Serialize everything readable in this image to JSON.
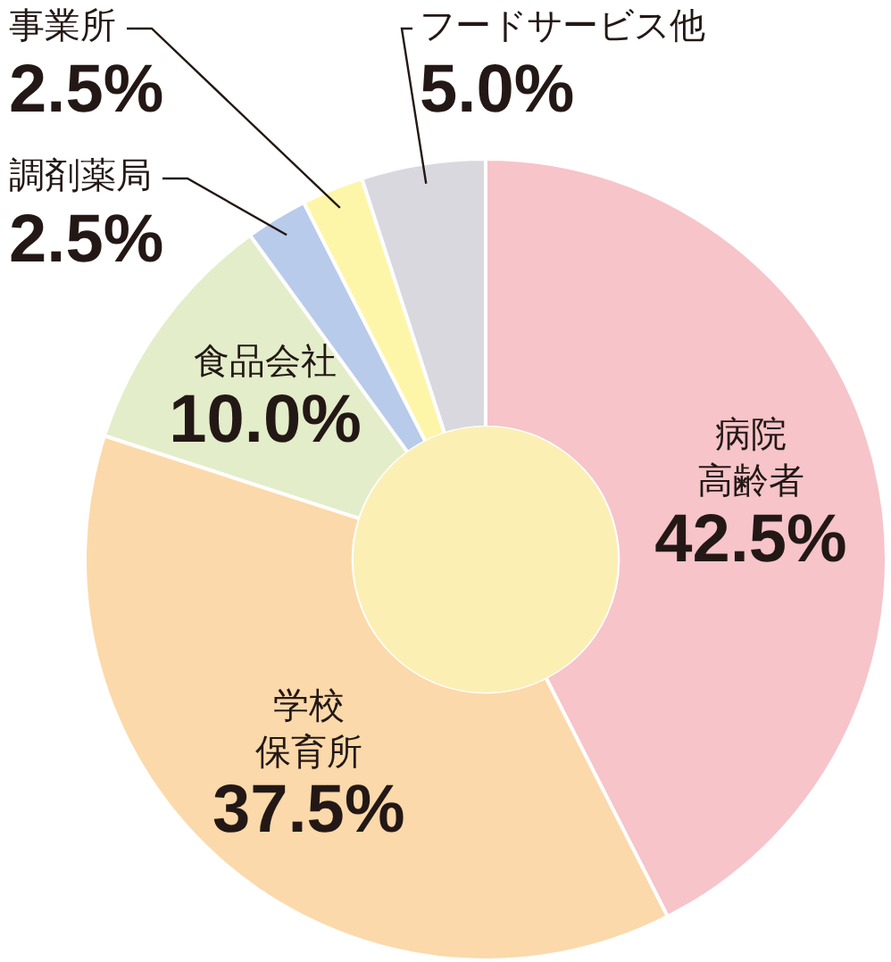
{
  "chart_data": {
    "type": "donut",
    "categories": [
      "病院高齢者",
      "学校保育所",
      "食品会社",
      "調剤薬局",
      "事業所",
      "フードサービス他"
    ],
    "values": [
      42.5,
      37.5,
      10.0,
      2.5,
      2.5,
      5.0
    ],
    "value_labels": [
      "42.5%",
      "37.5%",
      "10.0%",
      "2.5%",
      "2.5%",
      "5.0%"
    ],
    "colors": [
      "#f6c4c9",
      "#fcd9aa",
      "#e3edc9",
      "#b8cbea",
      "#fdf6a9",
      "#d9d8df"
    ],
    "legend": false
  }
}
